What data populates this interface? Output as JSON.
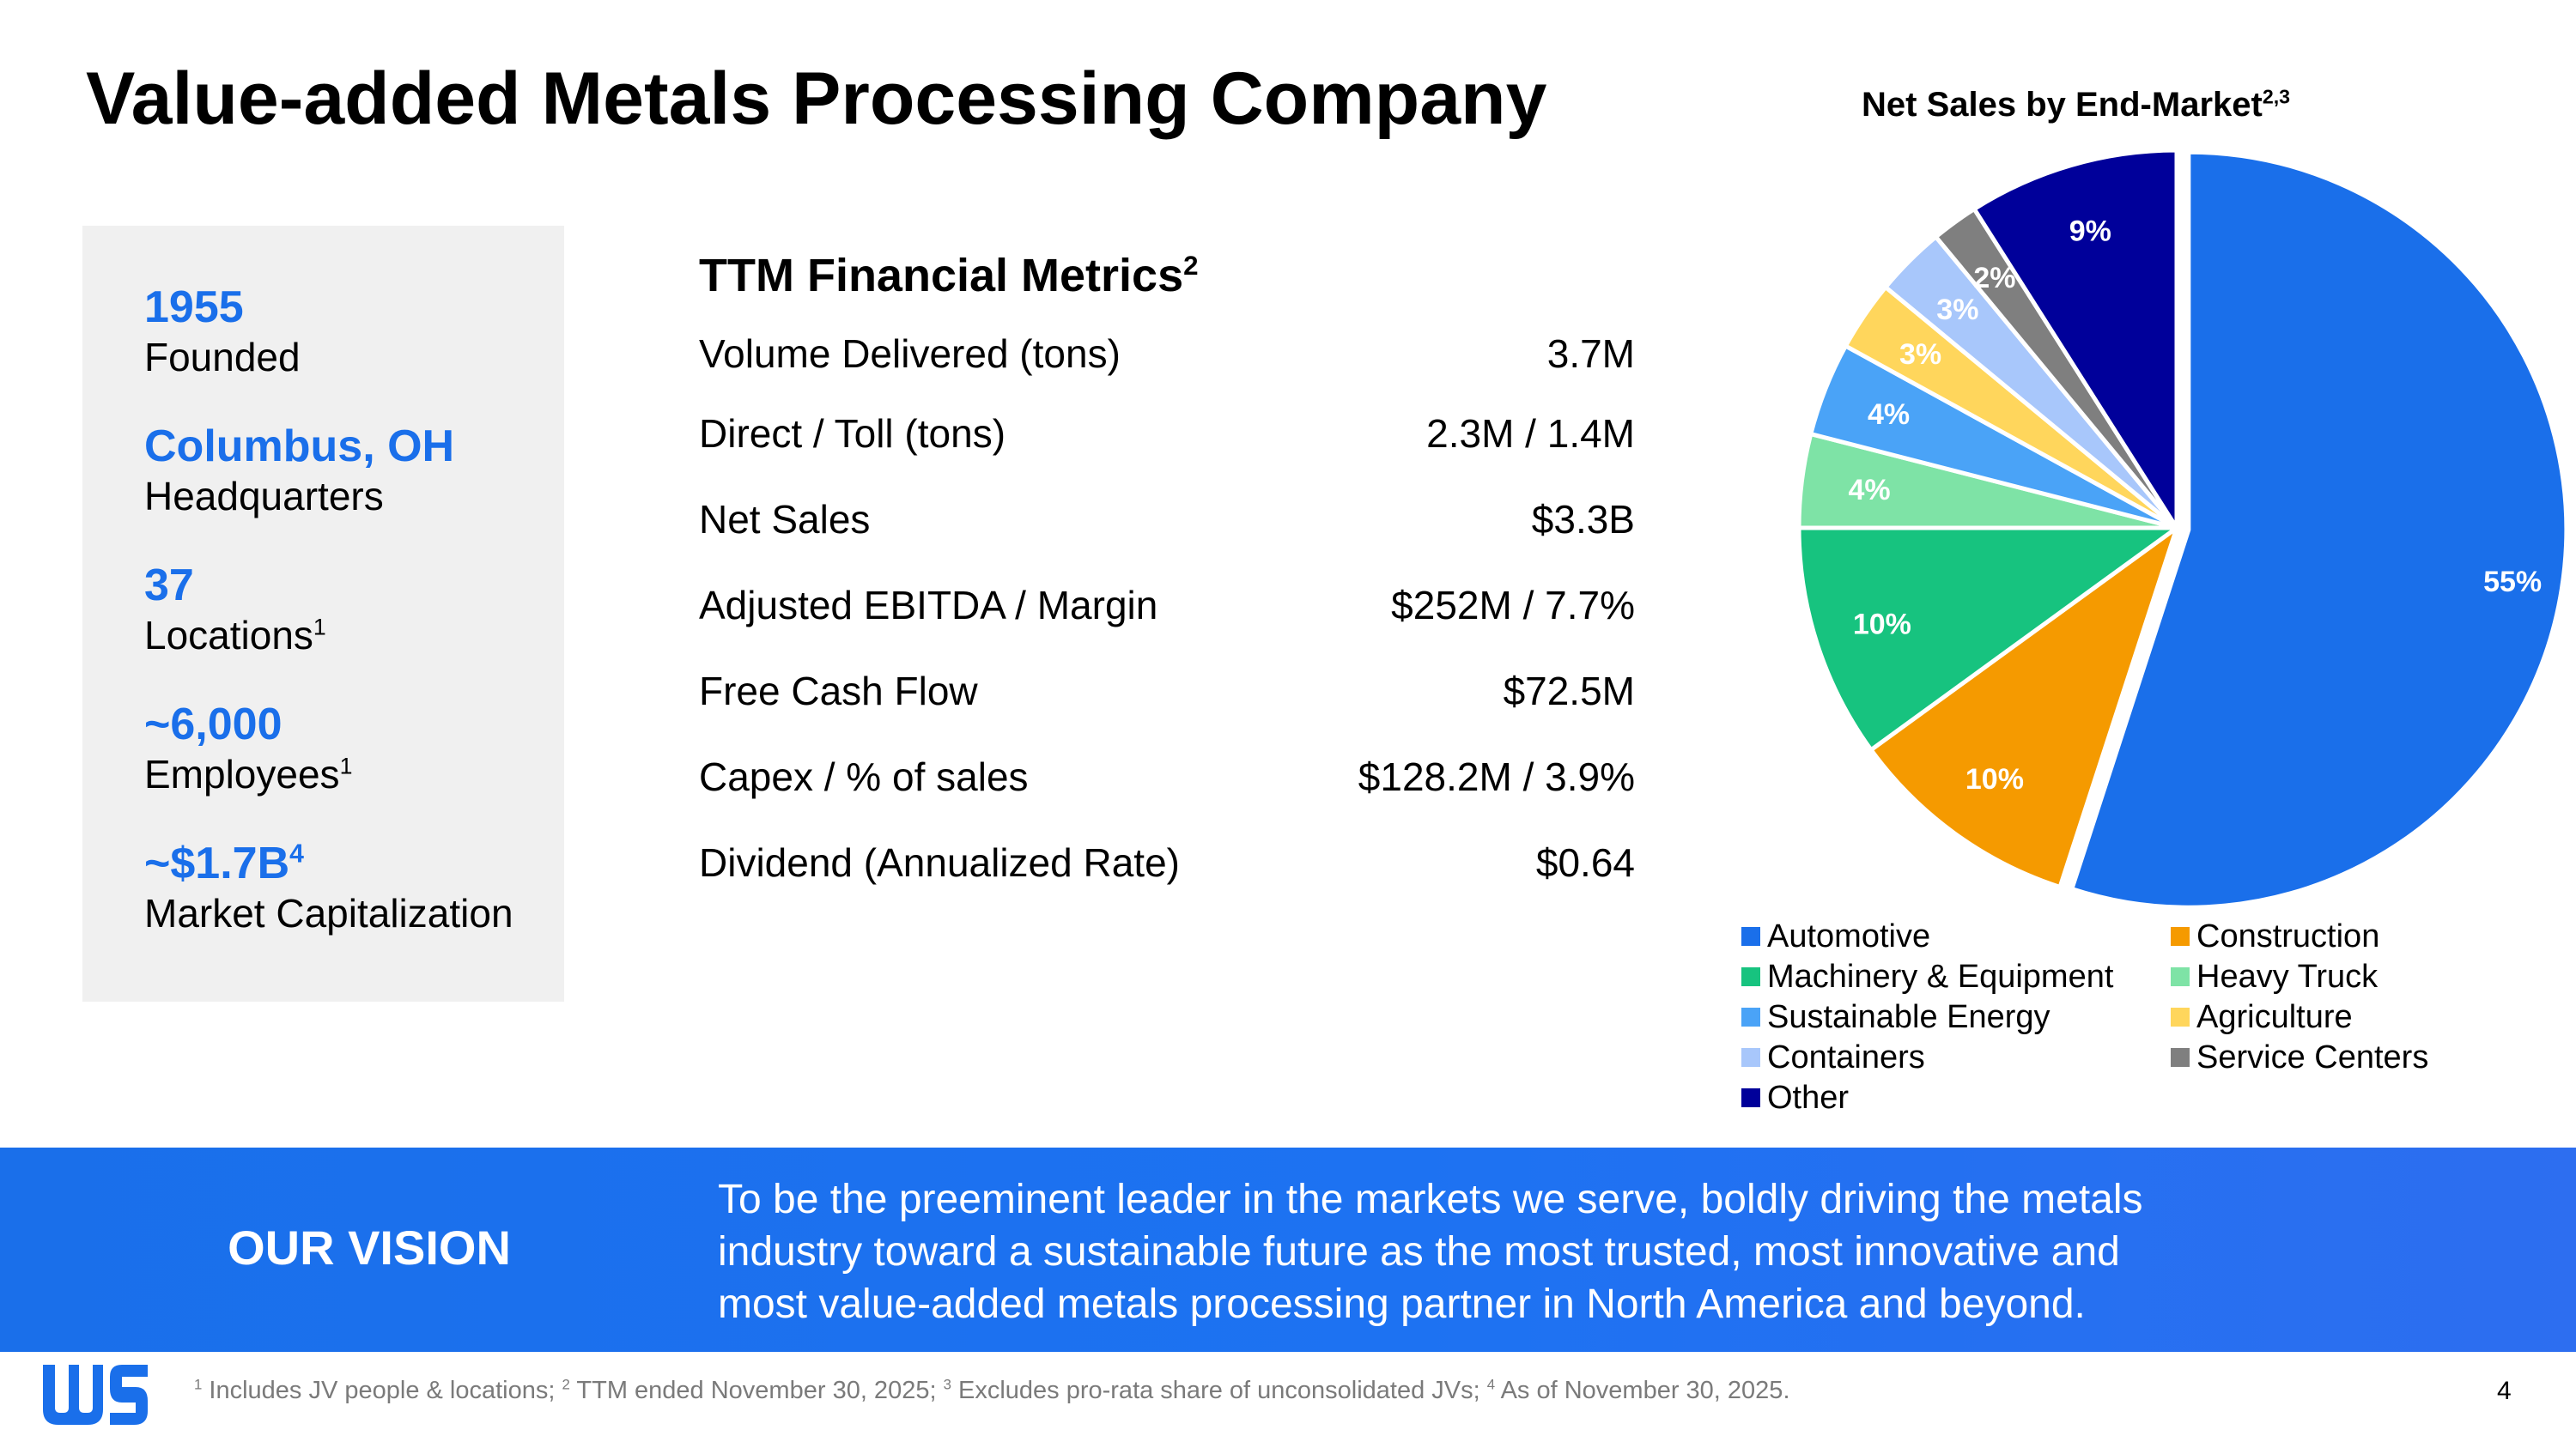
{
  "title": "Value-added Metals Processing Company",
  "facts": [
    {
      "value": "1955",
      "label": "Founded"
    },
    {
      "value": "Columbus, OH",
      "label": "Headquarters"
    },
    {
      "value": "37",
      "label": "Locations",
      "label_sup": "1"
    },
    {
      "value": "~6,000",
      "label": "Employees",
      "label_sup": "1"
    },
    {
      "value": "~$1.7B",
      "value_sup": "4",
      "label": "Market Capitalization"
    }
  ],
  "metrics": {
    "title": "TTM Financial Metrics",
    "title_sup": "2",
    "rows": [
      {
        "label": "Volume Delivered (tons)",
        "value": "3.7M"
      },
      {
        "label": "Direct / Toll (tons)",
        "value": "2.3M / 1.4M"
      },
      {
        "label": "Net Sales",
        "value": "$3.3B"
      },
      {
        "label": "Adjusted EBITDA / Margin",
        "value": "$252M / 7.7%"
      },
      {
        "label": "Free Cash Flow",
        "value": "$72.5M"
      },
      {
        "label": "Capex / % of sales",
        "value": "$128.2M / 3.9%"
      },
      {
        "label": "Dividend (Annualized Rate)",
        "value": "$0.64"
      }
    ]
  },
  "chart_data": {
    "type": "pie",
    "title": "Net Sales by End-Market",
    "title_sup": "2,3",
    "unit": "%",
    "slices": [
      {
        "name": "Automotive",
        "value": 55,
        "label": "55%",
        "color": "#1a6fea"
      },
      {
        "name": "Construction",
        "value": 10,
        "label": "10%",
        "color": "#f59a00"
      },
      {
        "name": "Machinery & Equipment",
        "value": 10,
        "label": "10%",
        "color": "#17c37f"
      },
      {
        "name": "Heavy Truck",
        "value": 4,
        "label": "4%",
        "color": "#7ee3a6"
      },
      {
        "name": "Sustainable Energy",
        "value": 4,
        "label": "4%",
        "color": "#4aa3f7"
      },
      {
        "name": "Agriculture",
        "value": 3,
        "label": "3%",
        "color": "#ffd65c"
      },
      {
        "name": "Containers",
        "value": 3,
        "label": "3%",
        "color": "#a8c7fb"
      },
      {
        "name": "Service Centers",
        "value": 2,
        "label": "2%",
        "color": "#7f7f7f"
      },
      {
        "name": "Other",
        "value": 9,
        "label": "9%",
        "color": "#00009a"
      }
    ],
    "legend_placement": "bottom"
  },
  "vision": {
    "label": "OUR VISION",
    "lines": [
      "To be the preeminent leader in the markets we serve, boldly driving the metals",
      "industry toward a sustainable future as the most trusted, most innovative and",
      "most value-added metals processing partner in North America and beyond."
    ]
  },
  "footnote": {
    "parts": [
      {
        "sup": "1",
        "text": " Includes JV people & locations; "
      },
      {
        "sup": "2",
        "text": " TTM ended November 30, 2025; "
      },
      {
        "sup": "3",
        "text": " Excludes pro-rata share of unconsolidated JVs; "
      },
      {
        "sup": "4",
        "text": " As of November 30, 2025."
      }
    ]
  },
  "page_number": "4",
  "logo_text": "WS",
  "colors": {
    "brand_blue": "#1a6fea",
    "fact_box_bg": "#f0f0f0"
  }
}
